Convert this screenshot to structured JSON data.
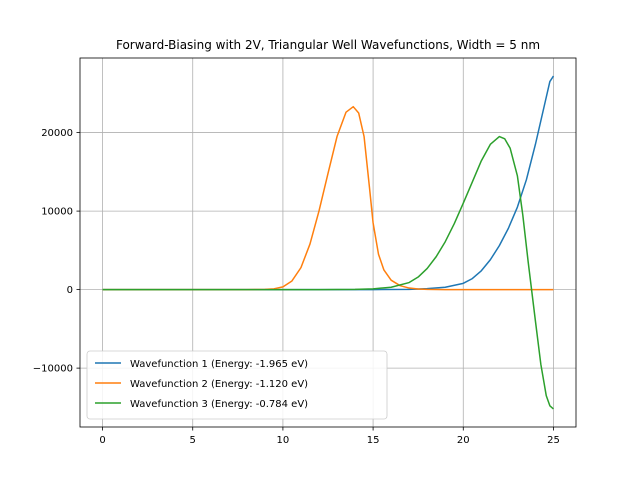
{
  "chart_data": {
    "type": "line",
    "title": "Forward-Biasing with 2V, Triangular Well Wavefunctions, Width = 5 nm",
    "xlabel": "",
    "ylabel": "",
    "xlim": [
      -1.25,
      26.25
    ],
    "ylim": [
      -17500,
      29500
    ],
    "xticks": [
      0,
      5,
      10,
      15,
      20,
      25
    ],
    "yticks": [
      -10000,
      0,
      10000,
      20000
    ],
    "grid": true,
    "legend_position": "lower-left",
    "series": [
      {
        "name": "Wavefunction 1 (Energy: -1.965 eV)",
        "color": "#1f77b4",
        "x": [
          0,
          10,
          15,
          17,
          18,
          19,
          20,
          20.5,
          21,
          21.5,
          22,
          22.5,
          23,
          23.5,
          24,
          24.5,
          24.8,
          25
        ],
        "y": [
          0,
          0,
          0,
          30,
          120,
          300,
          800,
          1400,
          2400,
          3800,
          5600,
          7800,
          10500,
          14000,
          18500,
          23500,
          26500,
          27200
        ]
      },
      {
        "name": "Wavefunction 2 (Energy: -1.120 eV)",
        "color": "#ff7f0e",
        "x": [
          0,
          8,
          9,
          9.5,
          10,
          10.5,
          11,
          11.5,
          12,
          12.5,
          13,
          13.5,
          13.9,
          14.2,
          14.5,
          14.8,
          15,
          15.3,
          15.6,
          16,
          16.5,
          17,
          17.5,
          18,
          19,
          20,
          25
        ],
        "y": [
          0,
          0,
          30,
          100,
          350,
          1100,
          2800,
          5800,
          10000,
          14800,
          19500,
          22600,
          23300,
          22500,
          19500,
          13000,
          8500,
          4500,
          2500,
          1200,
          500,
          200,
          80,
          30,
          0,
          0,
          0
        ]
      },
      {
        "name": "Wavefunction 3 (Energy: -0.784 eV)",
        "color": "#2ca02c",
        "x": [
          0,
          12,
          14,
          15,
          16,
          17,
          17.5,
          18,
          18.5,
          19,
          19.5,
          20,
          20.5,
          21,
          21.5,
          22,
          22.3,
          22.6,
          23,
          23.3,
          23.6,
          24,
          24.3,
          24.6,
          24.8,
          25
        ],
        "y": [
          0,
          0,
          30,
          100,
          300,
          900,
          1600,
          2700,
          4200,
          6100,
          8400,
          11000,
          13700,
          16400,
          18500,
          19500,
          19200,
          18000,
          14500,
          9500,
          3500,
          -4000,
          -9500,
          -13500,
          -14800,
          -15200
        ]
      }
    ]
  }
}
